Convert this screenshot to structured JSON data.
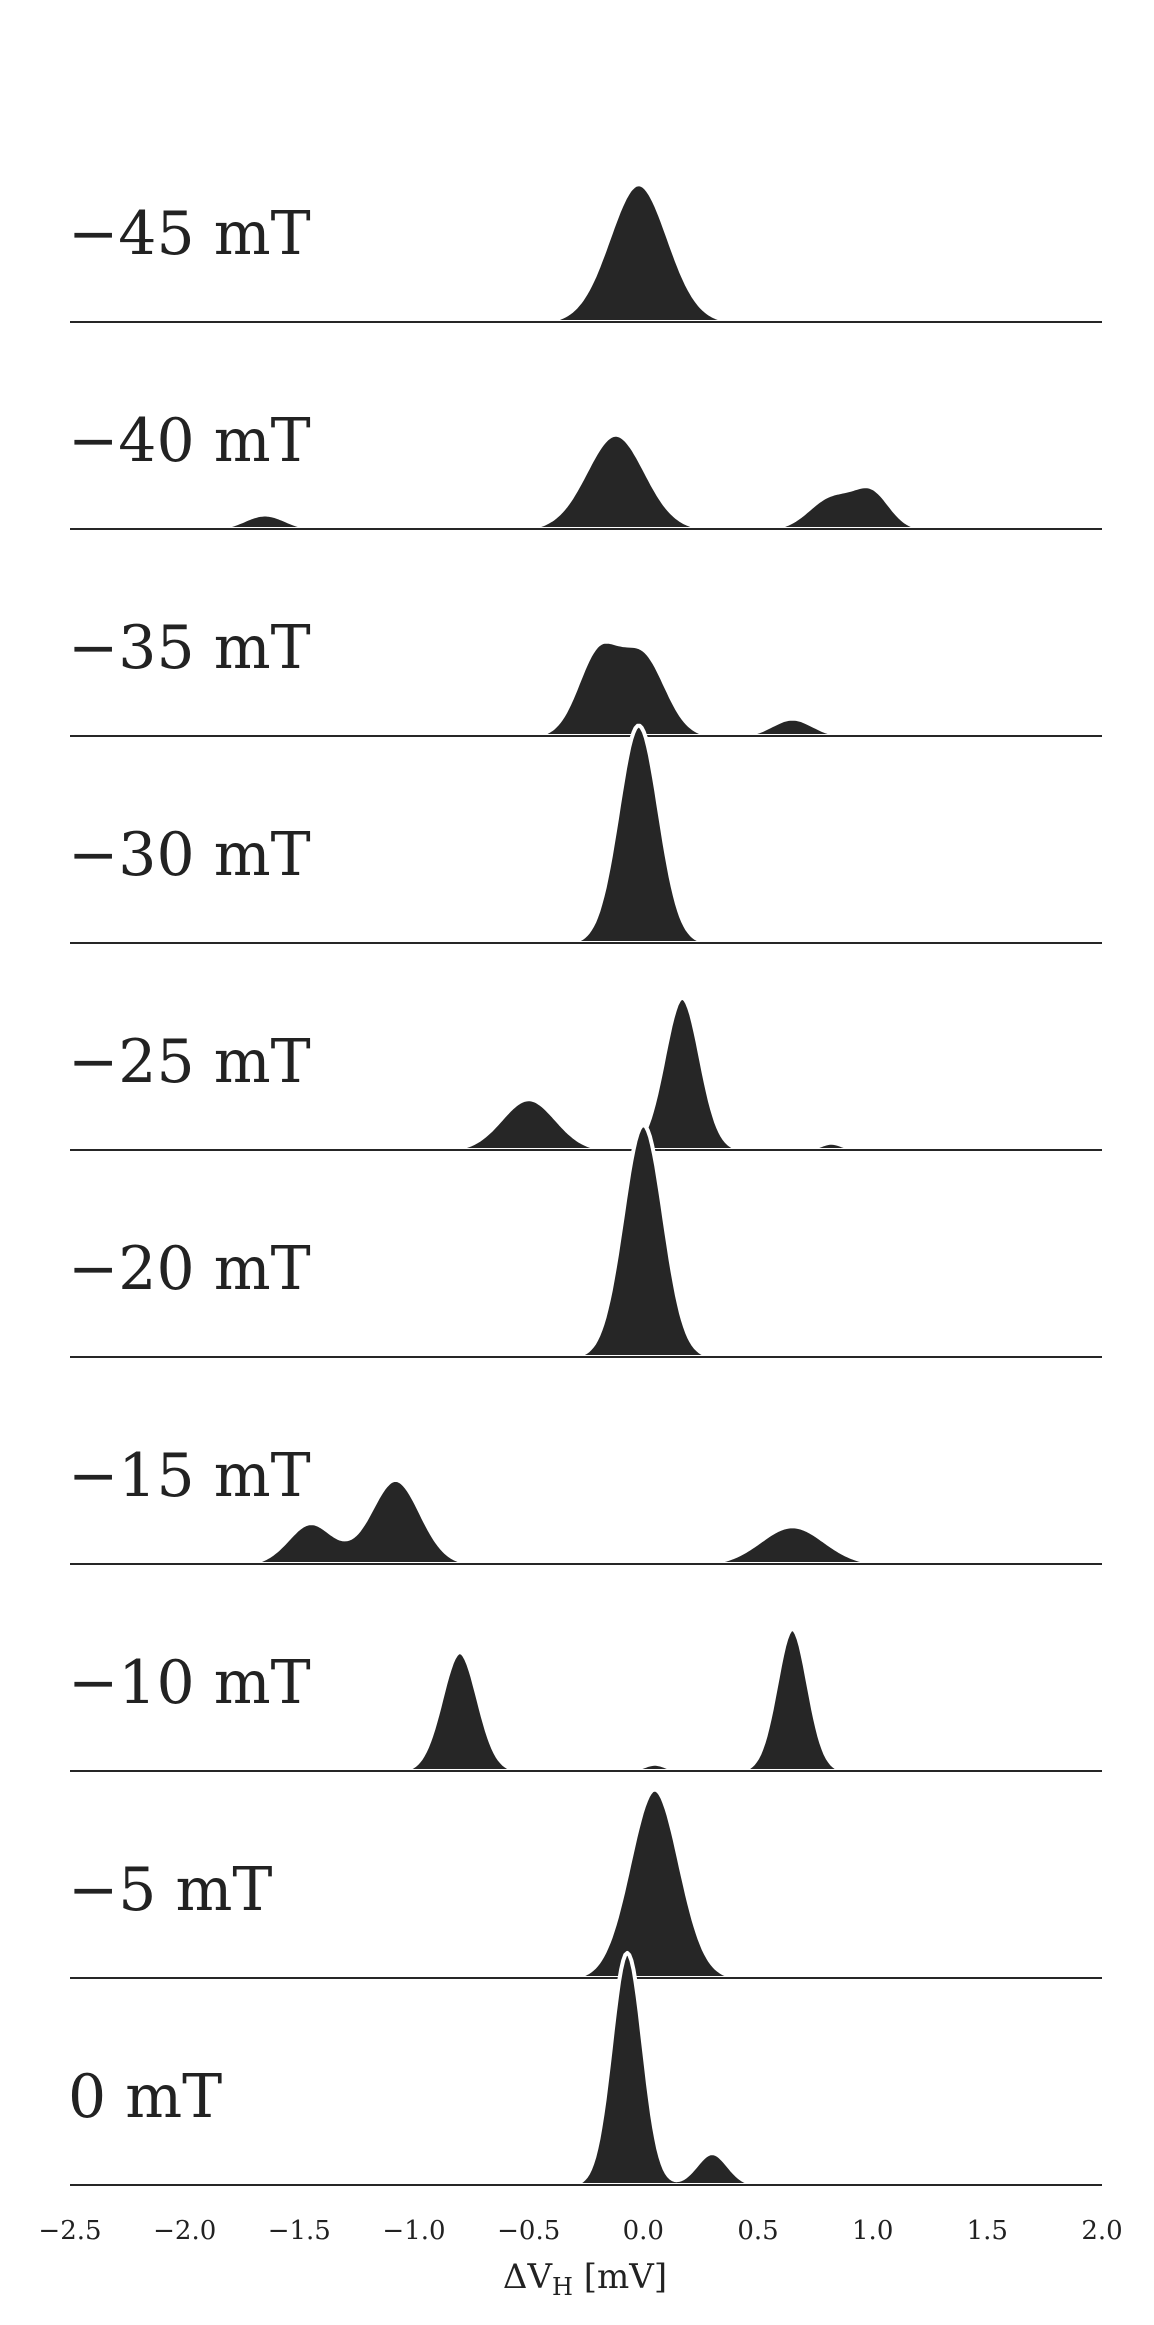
{
  "chart_data": {
    "type": "area",
    "title": "",
    "xlabel": "ΔV_H [mV]",
    "xlabel_parts": {
      "prefix": "ΔV",
      "sub": "H",
      "suffix": " [mV]"
    },
    "ylabel": "",
    "xlim": [
      -2.5,
      2.0
    ],
    "xticks": [
      -2.5,
      -2.0,
      -1.5,
      -1.0,
      -0.5,
      0.0,
      0.5,
      1.0,
      1.5,
      2.0
    ],
    "xtick_labels": [
      "−2.5",
      "−2.0",
      "−1.5",
      "−1.0",
      "−0.5",
      "0.0",
      "0.5",
      "1.0",
      "1.5",
      "2.0"
    ],
    "grid": false,
    "legend": "none",
    "fill_color": "#262626",
    "baseline_color": "#262626",
    "series": [
      {
        "label": "−45 mT",
        "peaks": [
          {
            "center": -0.02,
            "width": 0.13,
            "height": 0.95
          }
        ],
        "support": [
          -0.5,
          0.65
        ]
      },
      {
        "label": "−40 mT",
        "peaks": [
          {
            "center": -1.65,
            "width": 0.09,
            "height": 0.1
          },
          {
            "center": -0.12,
            "width": 0.13,
            "height": 0.65
          },
          {
            "center": 0.82,
            "width": 0.1,
            "height": 0.22
          },
          {
            "center": 1.0,
            "width": 0.08,
            "height": 0.24
          }
        ],
        "support": [
          -2.5,
          2.0
        ]
      },
      {
        "label": "−35 mT",
        "peaks": [
          {
            "center": -0.2,
            "width": 0.09,
            "height": 0.55
          },
          {
            "center": 0.0,
            "width": 0.1,
            "height": 0.55
          },
          {
            "center": 0.65,
            "width": 0.09,
            "height": 0.12
          }
        ],
        "support": [
          -0.82,
          1.0
        ]
      },
      {
        "label": "−30 mT",
        "peaks": [
          {
            "center": -0.02,
            "width": 0.09,
            "height": 1.5
          }
        ],
        "support": [
          -2.3,
          0.8
        ]
      },
      {
        "label": "−25 mT",
        "peaks": [
          {
            "center": -0.5,
            "width": 0.12,
            "height": 0.35
          },
          {
            "center": 0.17,
            "width": 0.08,
            "height": 1.05
          },
          {
            "center": 0.82,
            "width": 0.05,
            "height": 0.05
          }
        ],
        "support": [
          -0.95,
          1.4
        ]
      },
      {
        "label": "−20 mT",
        "peaks": [
          {
            "center": 0.0,
            "width": 0.09,
            "height": 1.6
          }
        ],
        "support": [
          -0.45,
          0.4
        ]
      },
      {
        "label": "−15 mT",
        "peaks": [
          {
            "center": -1.45,
            "width": 0.1,
            "height": 0.28
          },
          {
            "center": -1.08,
            "width": 0.11,
            "height": 0.58
          },
          {
            "center": 0.65,
            "width": 0.14,
            "height": 0.26
          }
        ],
        "support": [
          -1.8,
          1.05
        ]
      },
      {
        "label": "−10 mT",
        "peaks": [
          {
            "center": -0.8,
            "width": 0.08,
            "height": 0.82
          },
          {
            "center": 0.05,
            "width": 0.05,
            "height": 0.05
          },
          {
            "center": 0.65,
            "width": 0.07,
            "height": 0.98
          }
        ],
        "support": [
          -1.15,
          1.0
        ]
      },
      {
        "label": "−5 mT",
        "peaks": [
          {
            "center": 0.05,
            "width": 0.11,
            "height": 1.3
          }
        ],
        "support": [
          -2.5,
          0.55
        ]
      },
      {
        "label": "0 mT",
        "peaks": [
          {
            "center": -0.07,
            "width": 0.07,
            "height": 1.6
          },
          {
            "center": 0.3,
            "width": 0.07,
            "height": 0.22
          }
        ],
        "support": [
          -0.3,
          0.55
        ]
      }
    ]
  }
}
